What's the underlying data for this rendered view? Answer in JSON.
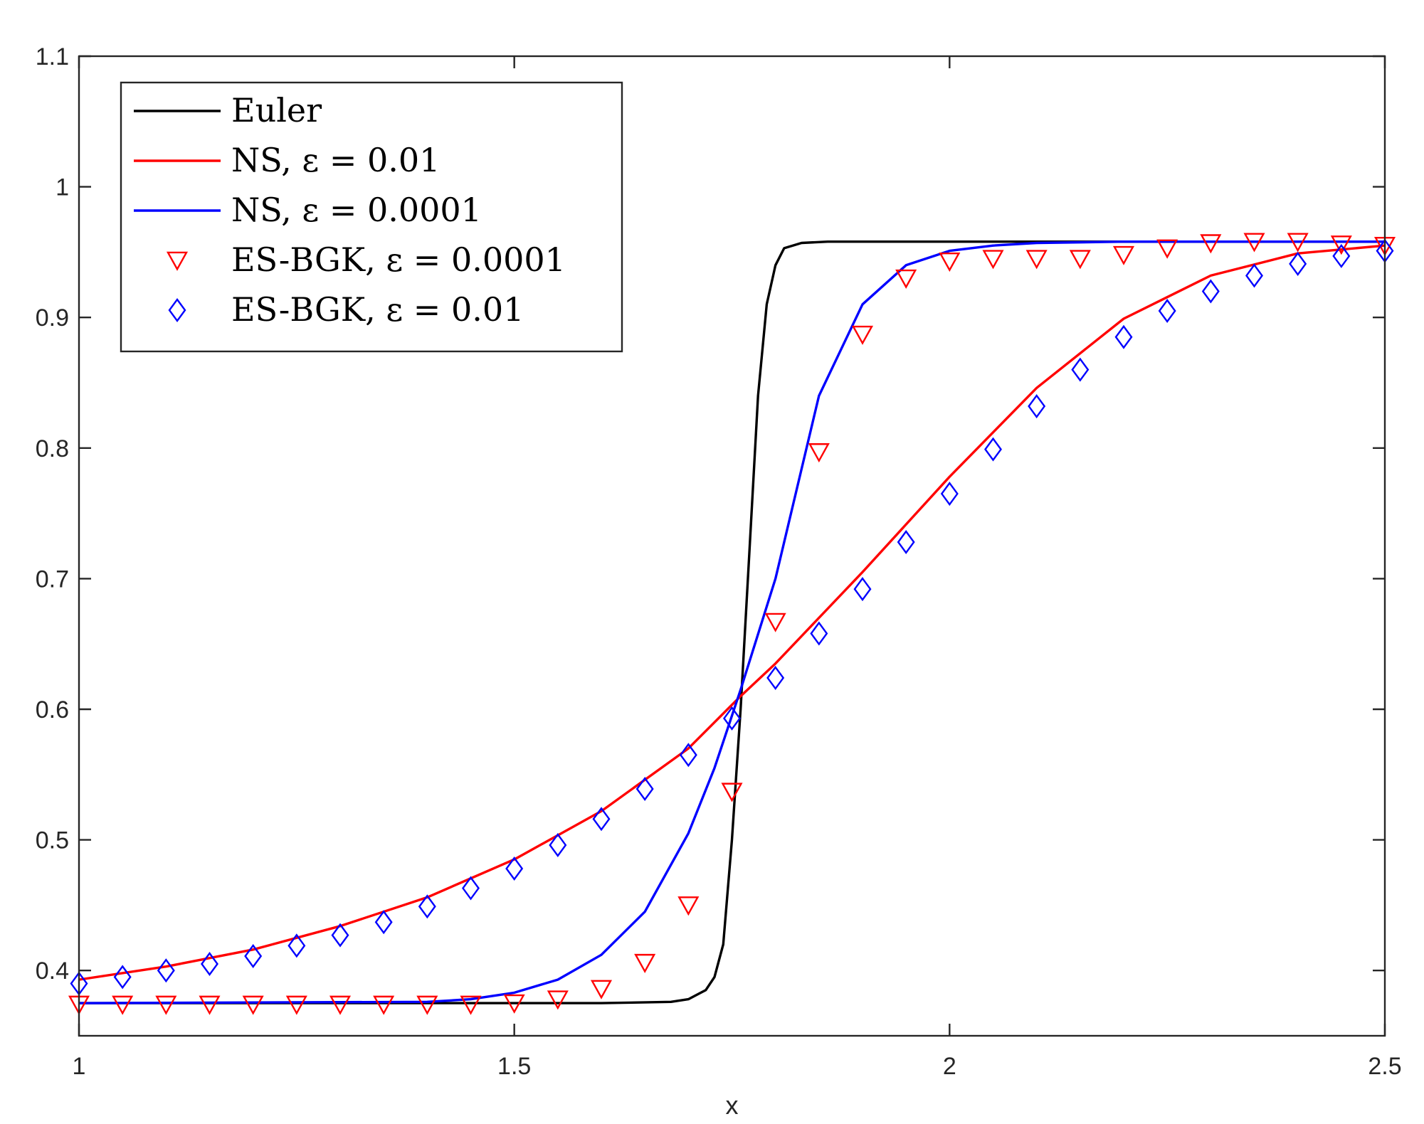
{
  "chart_data": {
    "type": "line",
    "title": "",
    "xlabel": "x",
    "ylabel": "",
    "xlim": [
      1,
      2.5
    ],
    "ylim": [
      0.35,
      1.1
    ],
    "xticks": [
      1,
      1.5,
      2,
      2.5
    ],
    "xtick_labels": [
      "1",
      "1.5",
      "2",
      "2.5"
    ],
    "yticks": [
      0.4,
      0.5,
      0.6,
      0.7,
      0.8,
      0.9,
      1.0,
      1.1
    ],
    "ytick_labels": [
      "0.4",
      "0.5",
      "0.6",
      "0.7",
      "0.8",
      "0.9",
      "1",
      "1.1"
    ],
    "grid": false,
    "legend_position": "top-left",
    "series": [
      {
        "name": "Euler",
        "kind": "line",
        "color": "#000000",
        "x": [
          1.0,
          1.6,
          1.68,
          1.7,
          1.72,
          1.73,
          1.74,
          1.75,
          1.76,
          1.77,
          1.78,
          1.79,
          1.8,
          1.81,
          1.83,
          1.86,
          2.5
        ],
        "y": [
          0.375,
          0.375,
          0.376,
          0.378,
          0.385,
          0.395,
          0.42,
          0.5,
          0.6,
          0.72,
          0.84,
          0.91,
          0.94,
          0.953,
          0.957,
          0.958,
          0.958
        ]
      },
      {
        "name": "NS, ε = 0.01",
        "kind": "line",
        "color": "#ff0000",
        "x": [
          1.0,
          1.1,
          1.2,
          1.3,
          1.4,
          1.5,
          1.6,
          1.7,
          1.76,
          1.8,
          1.9,
          2.0,
          2.1,
          2.2,
          2.3,
          2.4,
          2.5
        ],
        "y": [
          0.393,
          0.403,
          0.416,
          0.434,
          0.456,
          0.485,
          0.522,
          0.57,
          0.61,
          0.635,
          0.705,
          0.778,
          0.846,
          0.899,
          0.932,
          0.949,
          0.955
        ]
      },
      {
        "name": "NS, ε = 0.0001",
        "kind": "line",
        "color": "#0000ff",
        "x": [
          1.0,
          1.4,
          1.45,
          1.5,
          1.55,
          1.6,
          1.65,
          1.7,
          1.73,
          1.76,
          1.8,
          1.85,
          1.9,
          1.95,
          2.0,
          2.05,
          2.1,
          2.2,
          2.5
        ],
        "y": [
          0.375,
          0.376,
          0.378,
          0.383,
          0.393,
          0.412,
          0.445,
          0.505,
          0.555,
          0.615,
          0.7,
          0.84,
          0.91,
          0.94,
          0.951,
          0.955,
          0.957,
          0.958,
          0.958
        ]
      },
      {
        "name": "ES-BGK, ε = 0.0001",
        "kind": "marker",
        "marker": "triangle-down",
        "color": "#ff0000",
        "x": [
          1.0,
          1.05,
          1.1,
          1.15,
          1.2,
          1.25,
          1.3,
          1.35,
          1.4,
          1.45,
          1.5,
          1.55,
          1.6,
          1.65,
          1.7,
          1.75,
          1.8,
          1.85,
          1.9,
          1.95,
          2.0,
          2.05,
          2.1,
          2.15,
          2.2,
          2.25,
          2.3,
          2.35,
          2.4,
          2.45,
          2.5
        ],
        "y": [
          0.374,
          0.374,
          0.374,
          0.374,
          0.374,
          0.374,
          0.374,
          0.374,
          0.374,
          0.374,
          0.375,
          0.378,
          0.386,
          0.406,
          0.45,
          0.537,
          0.667,
          0.797,
          0.887,
          0.93,
          0.943,
          0.945,
          0.945,
          0.945,
          0.948,
          0.953,
          0.957,
          0.958,
          0.958,
          0.956,
          0.955
        ]
      },
      {
        "name": "ES-BGK, ε = 0.01",
        "kind": "marker",
        "marker": "diamond",
        "color": "#0000ff",
        "x": [
          1.0,
          1.05,
          1.1,
          1.15,
          1.2,
          1.25,
          1.3,
          1.35,
          1.4,
          1.45,
          1.5,
          1.55,
          1.6,
          1.65,
          1.7,
          1.75,
          1.8,
          1.85,
          1.9,
          1.95,
          2.0,
          2.05,
          2.1,
          2.15,
          2.2,
          2.25,
          2.3,
          2.35,
          2.4,
          2.45,
          2.5
        ],
        "y": [
          0.39,
          0.395,
          0.4,
          0.405,
          0.411,
          0.419,
          0.427,
          0.437,
          0.449,
          0.463,
          0.478,
          0.496,
          0.516,
          0.539,
          0.565,
          0.593,
          0.624,
          0.658,
          0.692,
          0.728,
          0.765,
          0.799,
          0.832,
          0.86,
          0.885,
          0.905,
          0.92,
          0.932,
          0.941,
          0.947,
          0.951
        ]
      }
    ]
  }
}
